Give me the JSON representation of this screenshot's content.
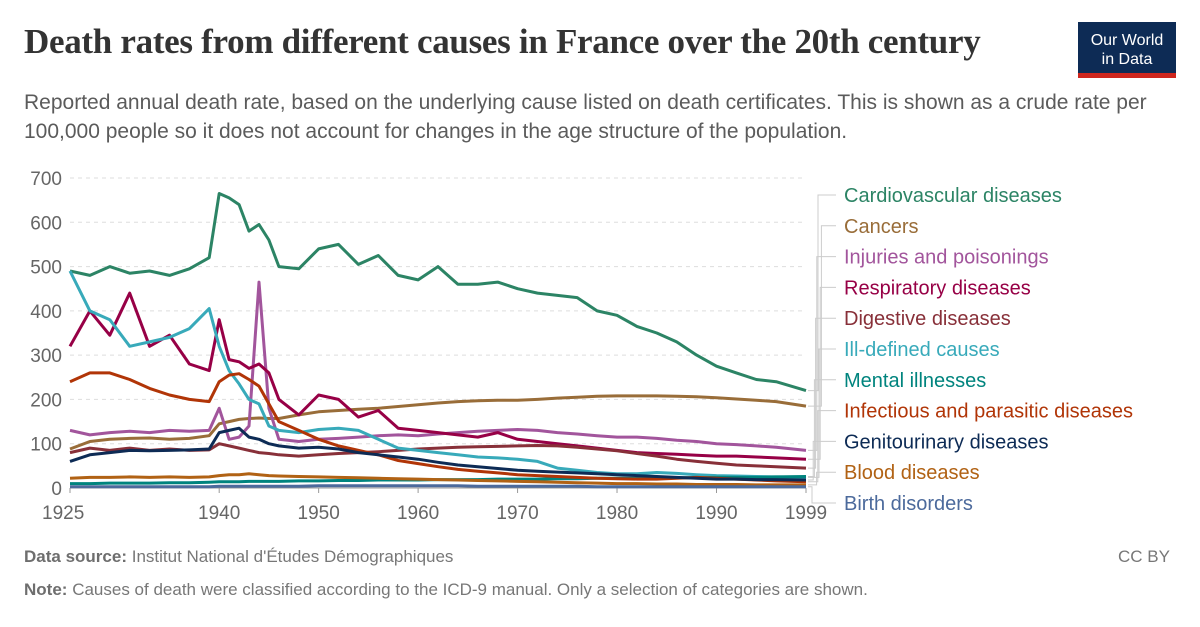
{
  "header": {
    "title": "Death rates from different causes in France over the 20th century",
    "subtitle": "Reported annual death rate, based on the underlying cause listed on death certificates. This is shown as a crude rate per 100,000 people so it does not account for changes in the age structure of the population."
  },
  "logo": {
    "line1": "Our World",
    "line2": "in Data",
    "bg": "#0d2b55",
    "accent": "#ce261e"
  },
  "footer": {
    "source_label": "Data source:",
    "source_text": "Institut National d'Études Démographiques",
    "note_label": "Note:",
    "note_text": "Causes of death were classified according to the ICD-9 manual. Only a selection of categories are shown.",
    "license": "CC BY"
  },
  "chart_data": {
    "type": "line",
    "x": [
      1925,
      1927,
      1929,
      1931,
      1933,
      1935,
      1937,
      1939,
      1940,
      1941,
      1942,
      1943,
      1944,
      1945,
      1946,
      1948,
      1950,
      1952,
      1954,
      1956,
      1958,
      1960,
      1962,
      1964,
      1966,
      1968,
      1970,
      1972,
      1974,
      1976,
      1978,
      1980,
      1982,
      1984,
      1986,
      1988,
      1990,
      1992,
      1994,
      1996,
      1999
    ],
    "xticks": [
      "1925",
      "1940",
      "1950",
      "1960",
      "1970",
      "1980",
      "1990",
      "1999"
    ],
    "xtick_values": [
      1925,
      1940,
      1950,
      1960,
      1970,
      1980,
      1990,
      1999
    ],
    "xlim": [
      1925,
      1999
    ],
    "ylim": [
      0,
      700
    ],
    "yticks": [
      "0",
      "100",
      "200",
      "300",
      "400",
      "500",
      "600",
      "700"
    ],
    "ytick_values": [
      0,
      100,
      200,
      300,
      400,
      500,
      600,
      700
    ],
    "grid": "horizontal-dashed",
    "legend": "right",
    "series": [
      {
        "name": "Cardiovascular diseases",
        "color": "#2c8465",
        "values": [
          490,
          480,
          500,
          485,
          490,
          480,
          495,
          520,
          665,
          655,
          640,
          580,
          595,
          560,
          500,
          495,
          540,
          550,
          505,
          525,
          480,
          470,
          500,
          460,
          460,
          465,
          450,
          440,
          435,
          430,
          400,
          390,
          365,
          350,
          330,
          300,
          275,
          260,
          245,
          240,
          220
        ]
      },
      {
        "name": "Cancers",
        "color": "#996d39",
        "values": [
          88,
          105,
          110,
          112,
          113,
          110,
          112,
          118,
          145,
          150,
          155,
          157,
          158,
          157,
          157,
          165,
          172,
          175,
          178,
          180,
          184,
          188,
          192,
          195,
          197,
          198,
          198,
          200,
          203,
          205,
          207,
          208,
          208,
          208,
          207,
          206,
          204,
          201,
          198,
          195,
          185
        ]
      },
      {
        "name": "Injuries and poisonings",
        "color": "#a2559c",
        "values": [
          130,
          120,
          125,
          128,
          125,
          130,
          128,
          130,
          180,
          110,
          115,
          140,
          465,
          180,
          110,
          105,
          110,
          112,
          115,
          118,
          120,
          118,
          122,
          125,
          128,
          130,
          132,
          130,
          125,
          122,
          118,
          115,
          115,
          112,
          108,
          105,
          100,
          98,
          95,
          92,
          85
        ]
      },
      {
        "name": "Respiratory diseases",
        "color": "#970046",
        "values": [
          320,
          400,
          345,
          440,
          320,
          345,
          280,
          265,
          380,
          290,
          285,
          270,
          280,
          260,
          200,
          165,
          210,
          200,
          160,
          175,
          135,
          130,
          125,
          120,
          115,
          125,
          110,
          105,
          100,
          95,
          90,
          85,
          80,
          78,
          76,
          74,
          72,
          72,
          70,
          68,
          65
        ]
      },
      {
        "name": "Digestive diseases",
        "color": "#883039",
        "values": [
          80,
          90,
          85,
          90,
          85,
          88,
          85,
          86,
          100,
          95,
          90,
          85,
          80,
          78,
          75,
          72,
          75,
          78,
          80,
          82,
          85,
          88,
          90,
          92,
          93,
          94,
          95,
          96,
          95,
          92,
          88,
          84,
          78,
          72,
          65,
          60,
          56,
          52,
          50,
          48,
          45
        ]
      },
      {
        "name": "Ill-defined causes",
        "color": "#38aaba",
        "values": [
          490,
          400,
          380,
          320,
          330,
          340,
          360,
          405,
          320,
          265,
          235,
          200,
          190,
          140,
          130,
          125,
          132,
          135,
          130,
          110,
          90,
          85,
          80,
          75,
          70,
          68,
          65,
          60,
          45,
          40,
          35,
          32,
          32,
          35,
          33,
          30,
          28,
          27,
          26,
          25,
          24
        ]
      },
      {
        "name": "Mental illnesses",
        "color": "#00847e",
        "values": [
          10,
          10,
          11,
          11,
          11,
          12,
          12,
          13,
          14,
          14,
          14,
          15,
          15,
          15,
          15,
          16,
          16,
          17,
          17,
          18,
          18,
          18,
          19,
          19,
          19,
          20,
          20,
          20,
          21,
          21,
          22,
          22,
          22,
          23,
          23,
          23,
          24,
          24,
          24,
          25,
          26
        ]
      },
      {
        "name": "Infectious and parasitic diseases",
        "color": "#b13507",
        "values": [
          240,
          260,
          260,
          245,
          225,
          210,
          200,
          195,
          240,
          255,
          258,
          245,
          230,
          190,
          150,
          130,
          110,
          95,
          85,
          75,
          62,
          55,
          48,
          42,
          38,
          34,
          30,
          28,
          26,
          24,
          22,
          21,
          20,
          20,
          22,
          24,
          22,
          20,
          18,
          16,
          14
        ]
      },
      {
        "name": "Genitourinary diseases",
        "color": "#0d2b55",
        "values": [
          60,
          75,
          80,
          85,
          84,
          85,
          86,
          88,
          125,
          130,
          135,
          115,
          110,
          100,
          95,
          90,
          92,
          88,
          80,
          75,
          70,
          65,
          58,
          52,
          48,
          44,
          40,
          38,
          36,
          34,
          32,
          30,
          28,
          26,
          24,
          22,
          20,
          20,
          19,
          19,
          18
        ]
      },
      {
        "name": "Blood diseases",
        "color": "#b16214",
        "values": [
          22,
          24,
          24,
          25,
          24,
          25,
          24,
          25,
          28,
          30,
          30,
          32,
          30,
          28,
          27,
          26,
          25,
          24,
          23,
          22,
          21,
          20,
          19,
          18,
          17,
          16,
          15,
          14,
          13,
          12,
          11,
          10,
          10,
          9,
          9,
          8,
          8,
          8,
          7,
          7,
          7
        ]
      },
      {
        "name": "Birth disorders",
        "color": "#4c6a9c",
        "values": [
          3,
          3,
          3,
          3,
          3,
          3,
          3,
          3,
          4,
          4,
          4,
          4,
          4,
          4,
          4,
          4,
          5,
          5,
          5,
          5,
          5,
          5,
          5,
          5,
          4,
          4,
          4,
          4,
          4,
          4,
          3,
          3,
          3,
          3,
          3,
          3,
          3,
          3,
          3,
          3,
          3
        ]
      }
    ]
  }
}
